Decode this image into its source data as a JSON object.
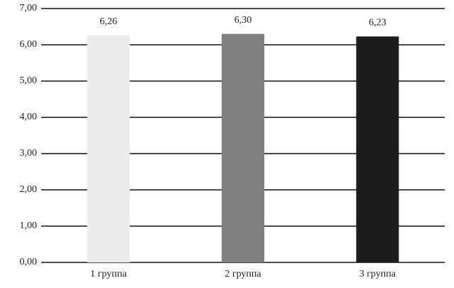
{
  "chart_data": {
    "type": "bar",
    "categories": [
      "1 группа",
      "2 группа",
      "3 группа"
    ],
    "values": [
      6.26,
      6.3,
      6.23
    ],
    "value_labels": [
      "6,26",
      "6,30",
      "6,23"
    ],
    "colors": [
      "#ebebeb",
      "#808080",
      "#1c1c1c"
    ],
    "ylim": [
      0,
      7
    ],
    "yticks": [
      {
        "value": 0,
        "label": "0,00"
      },
      {
        "value": 1,
        "label": "1,00"
      },
      {
        "value": 2,
        "label": "2,00"
      },
      {
        "value": 3,
        "label": "3,00"
      },
      {
        "value": 4,
        "label": "4,00"
      },
      {
        "value": 5,
        "label": "5,00"
      },
      {
        "value": 6,
        "label": "6,00"
      },
      {
        "value": 7,
        "label": "7,00"
      }
    ],
    "grid": true
  }
}
